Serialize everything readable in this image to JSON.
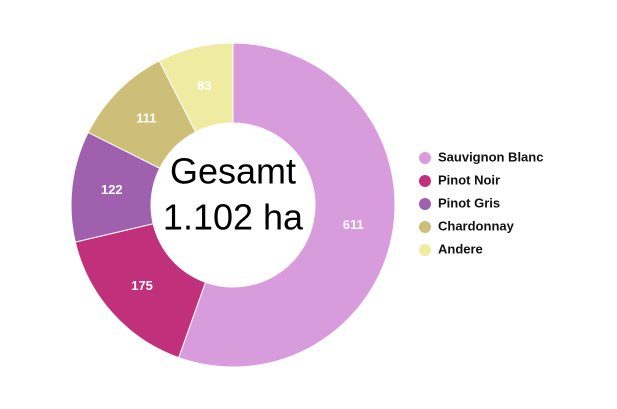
{
  "chart_data": {
    "type": "donut",
    "center_label": [
      "Gesamt",
      "1.102 ha"
    ],
    "categories": [
      "Sauvignon Blanc",
      "Pinot Noir",
      "Pinot Gris",
      "Chardonnay",
      "Andere"
    ],
    "values": [
      611,
      175,
      122,
      111,
      83
    ],
    "colors": [
      "#d89cdc",
      "#c0307b",
      "#9f60ae",
      "#cdbe78",
      "#efeba0"
    ],
    "legend": "right"
  }
}
